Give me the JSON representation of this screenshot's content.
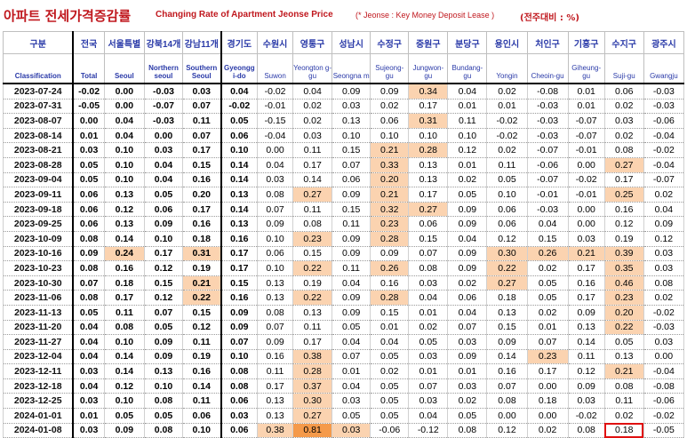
{
  "title": {
    "korean": "아파트 전세가격증감률",
    "english": "Changing Rate of Apartment Jeonse Price",
    "note": "(* Jeonse : Key Money Deposit Lease )",
    "unit": "(전주대비 : %)"
  },
  "columns": [
    {
      "ko": "구분",
      "en": "Classification"
    },
    {
      "ko": "전국",
      "en": "Total"
    },
    {
      "ko": "서울특별",
      "en": "Seoul"
    },
    {
      "ko": "강북14개",
      "en": "Northern seoul"
    },
    {
      "ko": "강남11개",
      "en": "Southern Seoul"
    },
    {
      "ko": "경기도",
      "en": "Gyeongg i-do"
    },
    {
      "ko": "수원시",
      "en": "Suwon"
    },
    {
      "ko": "영통구",
      "en": "Yeongton g-gu"
    },
    {
      "ko": "성남시",
      "en": "Seongna m"
    },
    {
      "ko": "수정구",
      "en": "Sujeong- gu"
    },
    {
      "ko": "중원구",
      "en": "Jungwon- gu"
    },
    {
      "ko": "분당구",
      "en": "Bundang- gu"
    },
    {
      "ko": "용인시",
      "en": "Yongin"
    },
    {
      "ko": "처인구",
      "en": "Cheoin-gu"
    },
    {
      "ko": "기흥구",
      "en": "Giheung- gu"
    },
    {
      "ko": "수지구",
      "en": "Suji-gu"
    },
    {
      "ko": "광주시",
      "en": "Gwangju"
    }
  ],
  "rows": [
    {
      "date": "2023-07-24",
      "v": [
        "-0.02",
        "0.00",
        "-0.03",
        "0.03",
        "0.04",
        "-0.02",
        "0.04",
        "0.09",
        "0.09",
        "0.34",
        "0.04",
        "0.02",
        "-0.08",
        "0.01",
        "0.06",
        "-0.03"
      ],
      "hl": [
        9
      ]
    },
    {
      "date": "2023-07-31",
      "v": [
        "-0.05",
        "0.00",
        "-0.07",
        "0.07",
        "-0.02",
        "-0.01",
        "0.02",
        "0.03",
        "0.02",
        "0.17",
        "0.01",
        "0.01",
        "-0.03",
        "0.01",
        "0.02",
        "-0.03"
      ],
      "hl": []
    },
    {
      "date": "2023-08-07",
      "v": [
        "0.00",
        "0.04",
        "-0.03",
        "0.11",
        "0.05",
        "-0.15",
        "0.02",
        "0.13",
        "0.06",
        "0.31",
        "0.11",
        "-0.02",
        "-0.03",
        "-0.07",
        "0.03",
        "-0.06"
      ],
      "hl": [
        9
      ]
    },
    {
      "date": "2023-08-14",
      "v": [
        "0.01",
        "0.04",
        "0.00",
        "0.07",
        "0.06",
        "-0.04",
        "0.03",
        "0.10",
        "0.10",
        "0.10",
        "0.10",
        "-0.02",
        "-0.03",
        "-0.07",
        "0.02",
        "-0.04"
      ],
      "hl": []
    },
    {
      "date": "2023-08-21",
      "v": [
        "0.03",
        "0.10",
        "0.03",
        "0.17",
        "0.10",
        "0.00",
        "0.11",
        "0.15",
        "0.21",
        "0.28",
        "0.12",
        "0.02",
        "-0.07",
        "-0.01",
        "0.08",
        "-0.02"
      ],
      "hl": [
        8,
        9
      ]
    },
    {
      "date": "2023-08-28",
      "v": [
        "0.05",
        "0.10",
        "0.04",
        "0.15",
        "0.14",
        "0.04",
        "0.17",
        "0.07",
        "0.33",
        "0.13",
        "0.01",
        "0.11",
        "-0.06",
        "0.00",
        "0.27",
        "-0.04"
      ],
      "hl": [
        8,
        14
      ]
    },
    {
      "date": "2023-09-04",
      "v": [
        "0.05",
        "0.10",
        "0.04",
        "0.16",
        "0.14",
        "0.03",
        "0.14",
        "0.06",
        "0.20",
        "0.13",
        "0.02",
        "0.05",
        "-0.07",
        "-0.02",
        "0.17",
        "-0.07"
      ],
      "hl": [
        8
      ]
    },
    {
      "date": "2023-09-11",
      "v": [
        "0.06",
        "0.13",
        "0.05",
        "0.20",
        "0.13",
        "0.08",
        "0.27",
        "0.09",
        "0.21",
        "0.17",
        "0.05",
        "0.10",
        "-0.01",
        "-0.01",
        "0.25",
        "0.02"
      ],
      "hl": [
        6,
        8,
        14
      ]
    },
    {
      "date": "2023-09-18",
      "v": [
        "0.06",
        "0.12",
        "0.06",
        "0.17",
        "0.14",
        "0.07",
        "0.11",
        "0.15",
        "0.32",
        "0.27",
        "0.09",
        "0.06",
        "-0.03",
        "0.00",
        "0.16",
        "0.04"
      ],
      "hl": [
        8,
        9
      ]
    },
    {
      "date": "2023-09-25",
      "v": [
        "0.06",
        "0.13",
        "0.09",
        "0.16",
        "0.13",
        "0.09",
        "0.08",
        "0.11",
        "0.23",
        "0.06",
        "0.09",
        "0.06",
        "0.04",
        "0.00",
        "0.12",
        "0.09"
      ],
      "hl": [
        8
      ]
    },
    {
      "date": "2023-10-09",
      "v": [
        "0.08",
        "0.14",
        "0.10",
        "0.18",
        "0.16",
        "0.10",
        "0.23",
        "0.09",
        "0.28",
        "0.15",
        "0.04",
        "0.12",
        "0.15",
        "0.03",
        "0.19",
        "0.12"
      ],
      "hl": [
        6,
        8
      ]
    },
    {
      "date": "2023-10-16",
      "v": [
        "0.09",
        "0.24",
        "0.17",
        "0.31",
        "0.17",
        "0.06",
        "0.15",
        "0.09",
        "0.09",
        "0.07",
        "0.09",
        "0.30",
        "0.26",
        "0.21",
        "0.39",
        "0.03"
      ],
      "hl": [
        1,
        3,
        11,
        12,
        13,
        14
      ]
    },
    {
      "date": "2023-10-23",
      "v": [
        "0.08",
        "0.16",
        "0.12",
        "0.19",
        "0.17",
        "0.10",
        "0.22",
        "0.11",
        "0.26",
        "0.08",
        "0.09",
        "0.22",
        "0.02",
        "0.17",
        "0.35",
        "0.03"
      ],
      "hl": [
        6,
        8,
        11,
        14
      ]
    },
    {
      "date": "2023-10-30",
      "v": [
        "0.07",
        "0.18",
        "0.15",
        "0.21",
        "0.15",
        "0.13",
        "0.19",
        "0.04",
        "0.16",
        "0.03",
        "0.02",
        "0.27",
        "0.05",
        "0.16",
        "0.46",
        "0.08"
      ],
      "hl": [
        3,
        11,
        14
      ]
    },
    {
      "date": "2023-11-06",
      "v": [
        "0.08",
        "0.17",
        "0.12",
        "0.22",
        "0.16",
        "0.13",
        "0.22",
        "0.09",
        "0.28",
        "0.04",
        "0.06",
        "0.18",
        "0.05",
        "0.17",
        "0.23",
        "0.02"
      ],
      "hl": [
        3,
        6,
        8,
        14
      ]
    },
    {
      "date": "2023-11-13",
      "v": [
        "0.05",
        "0.11",
        "0.07",
        "0.15",
        "0.09",
        "0.08",
        "0.13",
        "0.09",
        "0.15",
        "0.01",
        "0.04",
        "0.13",
        "0.02",
        "0.09",
        "0.20",
        "-0.02"
      ],
      "hl": [
        14
      ]
    },
    {
      "date": "2023-11-20",
      "v": [
        "0.04",
        "0.08",
        "0.05",
        "0.12",
        "0.09",
        "0.07",
        "0.11",
        "0.05",
        "0.01",
        "0.02",
        "0.07",
        "0.15",
        "0.01",
        "0.13",
        "0.22",
        "-0.03"
      ],
      "hl": [
        14
      ]
    },
    {
      "date": "2023-11-27",
      "v": [
        "0.04",
        "0.10",
        "0.09",
        "0.11",
        "0.07",
        "0.09",
        "0.17",
        "0.04",
        "0.04",
        "0.05",
        "0.03",
        "0.09",
        "0.07",
        "0.14",
        "0.05",
        "0.03"
      ],
      "hl": []
    },
    {
      "date": "2023-12-04",
      "v": [
        "0.04",
        "0.14",
        "0.09",
        "0.19",
        "0.10",
        "0.16",
        "0.38",
        "0.07",
        "0.05",
        "0.03",
        "0.09",
        "0.14",
        "0.23",
        "0.11",
        "0.13",
        "0.00"
      ],
      "hl": [
        6,
        12
      ]
    },
    {
      "date": "2023-12-11",
      "v": [
        "0.03",
        "0.14",
        "0.13",
        "0.16",
        "0.08",
        "0.11",
        "0.28",
        "0.01",
        "0.02",
        "0.01",
        "0.01",
        "0.16",
        "0.17",
        "0.12",
        "0.21",
        "-0.04"
      ],
      "hl": [
        6,
        14
      ]
    },
    {
      "date": "2023-12-18",
      "v": [
        "0.04",
        "0.12",
        "0.10",
        "0.14",
        "0.08",
        "0.17",
        "0.37",
        "0.04",
        "0.05",
        "0.07",
        "0.03",
        "0.07",
        "0.00",
        "0.09",
        "0.08",
        "-0.08"
      ],
      "hl": [
        6
      ]
    },
    {
      "date": "2023-12-25",
      "v": [
        "0.03",
        "0.10",
        "0.08",
        "0.11",
        "0.06",
        "0.13",
        "0.30",
        "0.03",
        "0.05",
        "0.03",
        "0.02",
        "0.08",
        "0.18",
        "0.03",
        "0.11",
        "-0.06"
      ],
      "hl": [
        6
      ]
    },
    {
      "date": "2024-01-01",
      "v": [
        "0.01",
        "0.05",
        "0.05",
        "0.06",
        "0.03",
        "0.13",
        "0.27",
        "0.05",
        "0.05",
        "0.04",
        "0.05",
        "0.00",
        "0.00",
        "-0.02",
        "0.02",
        "-0.02"
      ],
      "hl": [
        6
      ]
    },
    {
      "date": "2024-01-08",
      "v": [
        "0.03",
        "0.09",
        "0.08",
        "0.10",
        "0.06",
        "0.38",
        "0.81",
        "0.03",
        "-0.06",
        "-0.12",
        "0.08",
        "0.12",
        "0.02",
        "0.08",
        "0.18",
        "-0.05"
      ],
      "hl": [
        5,
        7
      ],
      "hl2": [
        6
      ],
      "boxed": [
        14
      ]
    }
  ]
}
